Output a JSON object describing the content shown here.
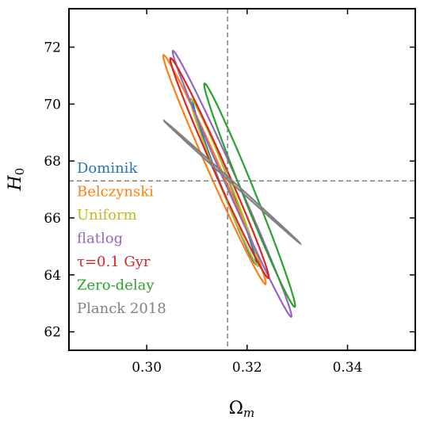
{
  "chart_data": {
    "type": "line",
    "xlabel": "Ω",
    "xlabel_sub": "m",
    "ylabel": "H",
    "ylabel_sub": "0",
    "xlim": [
      0.2845,
      0.3535
    ],
    "ylim": [
      61.35,
      73.35
    ],
    "x_ticks": [
      0.3,
      0.32,
      0.34
    ],
    "x_tick_labels": [
      "0.30",
      "0.32",
      "0.34"
    ],
    "y_ticks": [
      62,
      64,
      66,
      68,
      70,
      72
    ],
    "y_tick_labels": [
      "62",
      "64",
      "66",
      "68",
      "70",
      "72"
    ],
    "reference_lines": {
      "x": 0.3161,
      "y": 67.3,
      "style": "dashed",
      "color": "#808080"
    },
    "legend_position": "left",
    "grid": false,
    "series": [
      {
        "name": "Dominik",
        "color": "#1f77b4",
        "contour": {
          "cx": 0.3155,
          "cy": 67.25,
          "a": 0.0175,
          "b": 0.0009,
          "angle_deg": -69.0
        }
      },
      {
        "name": "Belczynski",
        "color": "#ff7f0e",
        "contour": {
          "cx": 0.3135,
          "cy": 67.7,
          "a": 0.025,
          "b": 0.0012,
          "angle_deg": -66.0
        }
      },
      {
        "name": "Uniform",
        "color": "#bcbd22",
        "contour": {
          "cx": 0.3155,
          "cy": 67.25,
          "a": 0.018,
          "b": 0.001,
          "angle_deg": -68.0
        }
      },
      {
        "name": "flatlog",
        "color": "#9467bd",
        "contour": {
          "cx": 0.317,
          "cy": 67.2,
          "a": 0.029,
          "b": 0.0012,
          "angle_deg": -66.0
        }
      },
      {
        "name": "τ=0.1 Gyr",
        "color": "#d62728",
        "contour": {
          "cx": 0.3145,
          "cy": 67.75,
          "a": 0.024,
          "b": 0.0012,
          "angle_deg": -66.0
        }
      },
      {
        "name": "Zero-delay",
        "color": "#2ca02c",
        "contour": {
          "cx": 0.3205,
          "cy": 66.8,
          "a": 0.024,
          "b": 0.0012,
          "angle_deg": -68.0
        }
      },
      {
        "name": "Planck 2018",
        "color": "#808080",
        "contour": {
          "cx": 0.317,
          "cy": 67.26,
          "a": 0.0182,
          "b": 0.00022,
          "angle_deg": -42.0
        }
      }
    ]
  }
}
